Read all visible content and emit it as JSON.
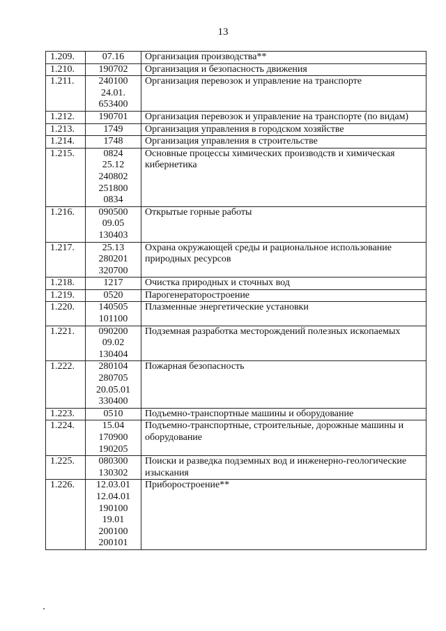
{
  "page_number": "13",
  "rows": [
    {
      "num": "1.209.",
      "codes": [
        "07.16"
      ],
      "name": "Организация производства**"
    },
    {
      "num": "1.210.",
      "codes": [
        "190702"
      ],
      "name": "Организация и безопасность движения"
    },
    {
      "num": "1.211.",
      "codes": [
        "240100",
        "24.01.",
        "653400"
      ],
      "name": "Организация перевозок и управление на транспорте"
    },
    {
      "num": "1.212.",
      "codes": [
        "190701"
      ],
      "name": "Организация перевозок и управление на транспорте (по видам)"
    },
    {
      "num": "1.213.",
      "codes": [
        "1749"
      ],
      "name": "Организация управления в городском хозяйстве"
    },
    {
      "num": "1.214.",
      "codes": [
        "1748"
      ],
      "name": "Организация управления в строительстве"
    },
    {
      "num": "1.215.",
      "codes": [
        "0824",
        "25.12",
        "240802",
        "251800",
        "0834"
      ],
      "name": "Основные процессы химических производств и химическая кибернетика"
    },
    {
      "num": "1.216.",
      "codes": [
        "090500",
        "09.05",
        "130403"
      ],
      "name": "Открытые горные работы"
    },
    {
      "num": "1.217.",
      "codes": [
        "25.13",
        "280201",
        "320700"
      ],
      "name": "Охрана окружающей среды и рациональное использование природных ресурсов"
    },
    {
      "num": "1.218.",
      "codes": [
        "1217"
      ],
      "name": "Очистка природных и сточных вод"
    },
    {
      "num": "1.219.",
      "codes": [
        "0520"
      ],
      "name": "Парогенераторостроение"
    },
    {
      "num": "1.220.",
      "codes": [
        "140505",
        "101100"
      ],
      "name": "Плазменные энергетические установки"
    },
    {
      "num": "1.221.",
      "codes": [
        "090200",
        "09.02",
        "130404"
      ],
      "name": "Подземная разработка месторождений полезных ископаемых"
    },
    {
      "num": "1.222.",
      "codes": [
        "280104",
        "280705",
        "20.05.01",
        "330400"
      ],
      "name": "Пожарная безопасность"
    },
    {
      "num": "1.223.",
      "codes": [
        "0510"
      ],
      "name": "Подъемно-транспортные машины и оборудование"
    },
    {
      "num": "1.224.",
      "codes": [
        "15.04",
        "170900",
        "190205"
      ],
      "name": "Подъемно-транспортные, строительные, дорожные машины и оборудование"
    },
    {
      "num": "1.225.",
      "codes": [
        "080300",
        "130302"
      ],
      "name": "Поиски и разведка подземных вод и инженерно-геологические изыскания"
    },
    {
      "num": "1.226.",
      "codes": [
        "12.03.01",
        "12.04.01",
        "190100",
        "19.01",
        "200100",
        "200101"
      ],
      "name": "Приборостроение**"
    }
  ]
}
